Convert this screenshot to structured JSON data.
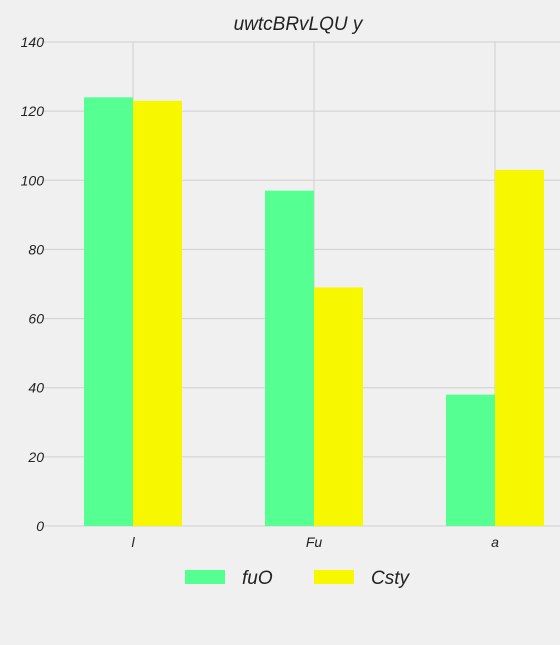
{
  "chart_data": {
    "type": "bar",
    "title": "uwtcBRvLQU y",
    "xlabel": "",
    "ylabel": "",
    "categories": [
      "l",
      "Fu",
      "a"
    ],
    "series": [
      {
        "name": "fuO",
        "values": [
          124,
          97,
          38
        ],
        "color": "#55ff91"
      },
      {
        "name": "Csty",
        "values": [
          123,
          69,
          103
        ],
        "color": "#f7f700"
      }
    ],
    "ylim": [
      0,
      140
    ],
    "yticks": [
      0,
      20,
      40,
      60,
      80,
      100,
      120,
      140
    ],
    "grid": true,
    "legend": "bottom-center"
  }
}
